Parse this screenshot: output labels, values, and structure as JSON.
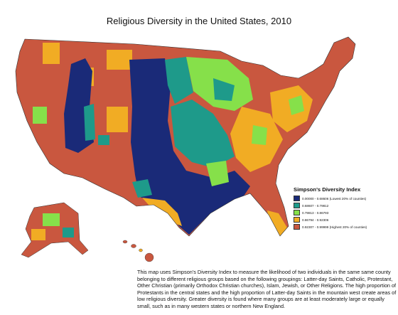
{
  "title": "Religious Diversity in the United States, 2010",
  "legend": {
    "title": "Simpson's Diversity Index",
    "items": [
      {
        "label": "0.00000 - 0.68606 (Lowest 20% of counties)",
        "color": "#1a2a78"
      },
      {
        "label": "0.68607 - 0.79812",
        "color": "#1e9a8a"
      },
      {
        "label": "0.79813 - 0.86793",
        "color": "#86e04a"
      },
      {
        "label": "0.86794 - 0.92306",
        "color": "#f1ac24"
      },
      {
        "label": "0.92307 - 0.99999 (Highest 20% of counties)",
        "color": "#c9573f"
      }
    ]
  },
  "caption": "This map uses Simpson's Diversity Index to measure the likelihood of two individuals in the same same county belonging to different religious groups based on the following groupings: Latter-day Saints, Catholic, Protestant, Other Christian (primarily Orthodox Christian churches), Islam, Jewish, or Other Religions. The high proportion of Protestants in the central states and the high proportion of Latter-day Saints in the mountain west create areas of low religious diversity. Greater diversity is found where many groups are at least moderately large or equally small, such as in many western states or northern New England."
}
